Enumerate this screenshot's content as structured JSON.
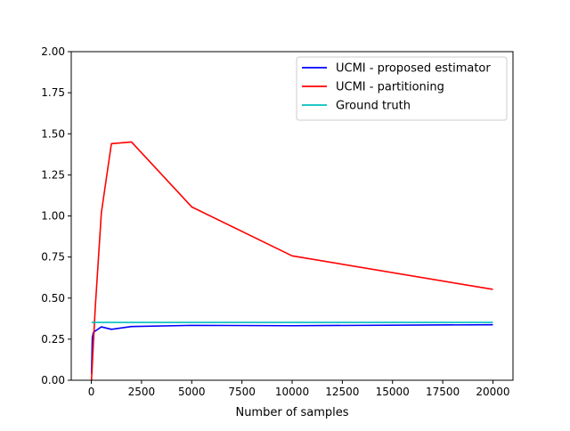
{
  "chart_data": {
    "type": "line",
    "title": "",
    "xlabel": "Number of samples",
    "ylabel": "",
    "xlim": [
      -1000,
      21000
    ],
    "ylim": [
      0,
      2.0
    ],
    "xticks": [
      0,
      2500,
      5000,
      7500,
      10000,
      12500,
      15000,
      17500,
      20000
    ],
    "xtick_labels": [
      "0",
      "2500",
      "5000",
      "7500",
      "10000",
      "12500",
      "15000",
      "17500",
      "20000"
    ],
    "yticks": [
      0,
      0.25,
      0.5,
      0.75,
      1.0,
      1.25,
      1.5,
      1.75,
      2.0
    ],
    "ytick_labels": [
      "0.00",
      "0.25",
      "0.50",
      "0.75",
      "1.00",
      "1.25",
      "1.50",
      "1.75",
      "2.00"
    ],
    "grid": false,
    "legend_position": "top-right",
    "series": [
      {
        "name": "UCMI - proposed estimator",
        "color": "#0000ff",
        "x": [
          10,
          50,
          100,
          200,
          500,
          1000,
          2000,
          5000,
          10000,
          20000
        ],
        "values": [
          0.04,
          0.26,
          0.29,
          0.3,
          0.325,
          0.31,
          0.327,
          0.334,
          0.332,
          0.338
        ]
      },
      {
        "name": "UCMI - partitioning",
        "color": "#ff0000",
        "x": [
          10,
          50,
          100,
          200,
          500,
          1000,
          2000,
          5000,
          10000,
          20000
        ],
        "values": [
          0.0,
          0.1,
          0.22,
          0.45,
          1.02,
          1.44,
          1.45,
          1.055,
          0.757,
          0.553
        ]
      },
      {
        "name": "Ground truth",
        "color": "#00bfbf",
        "x": [
          10,
          20000
        ],
        "values": [
          0.352,
          0.352
        ]
      }
    ]
  }
}
